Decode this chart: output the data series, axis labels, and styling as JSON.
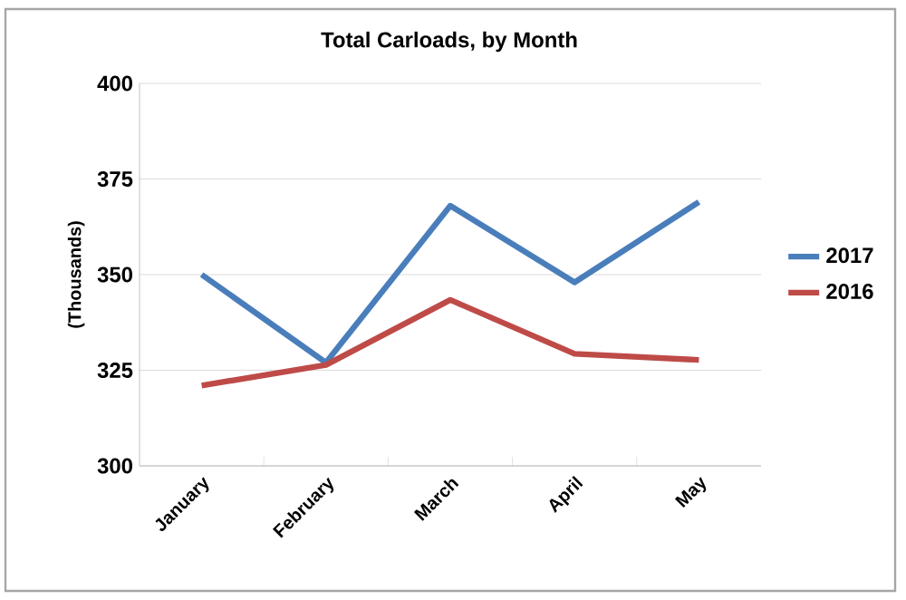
{
  "chart_data": {
    "type": "line",
    "title": "Total Carloads, by Month",
    "ylabel": "(Thousands)",
    "categories": [
      "January",
      "February",
      "March",
      "April",
      "May"
    ],
    "series": [
      {
        "name": "2017",
        "color": "#4a7ebb",
        "values": [
          350,
          327,
          368,
          348,
          369
        ]
      },
      {
        "name": "2016",
        "color": "#be4b48",
        "values": [
          321,
          326.4,
          343.4,
          329.3,
          327.7
        ]
      }
    ],
    "ylim": [
      300,
      400
    ],
    "yticks": [
      300,
      325,
      350,
      375,
      400
    ],
    "grid": "y",
    "legend": "right",
    "marker": "none",
    "line_style": "solid"
  }
}
